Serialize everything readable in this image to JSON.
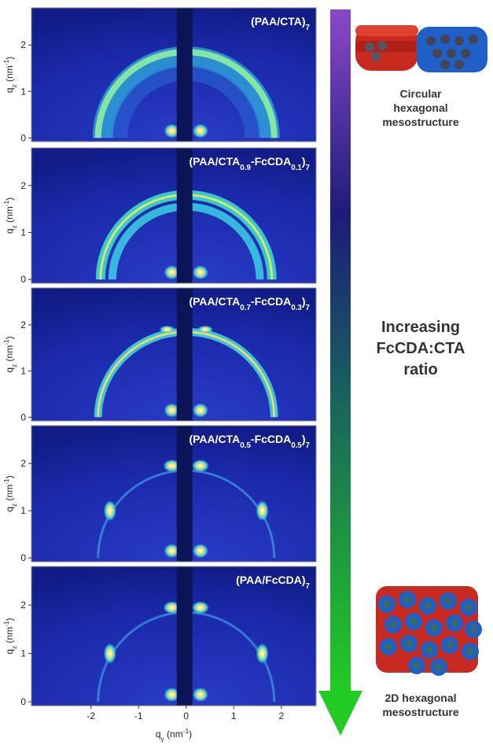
{
  "chart_data": [
    {
      "type": "scattering-image",
      "title": [
        {
          "text": "(PAA/CTA)"
        },
        {
          "text": "7",
          "sub": true
        }
      ],
      "ylabel": [
        {
          "text": "q"
        },
        {
          "text": "z",
          "sub": true
        },
        {
          "text": " (nm"
        },
        {
          "text": "-1",
          "sup": true
        },
        {
          "text": ")"
        }
      ],
      "xlim": [
        -3.25,
        2.73
      ],
      "ylim": [
        -0.08,
        2.8
      ],
      "yticks": [
        0,
        1,
        2
      ],
      "pattern": "ring"
    },
    {
      "type": "scattering-image",
      "title": [
        {
          "text": "(PAA/CTA"
        },
        {
          "text": "0.9",
          "sub": true
        },
        {
          "text": "-FcCDA"
        },
        {
          "text": "0.1",
          "sub": true
        },
        {
          "text": ")"
        },
        {
          "text": "7",
          "sub": true
        }
      ],
      "ylabel": [
        {
          "text": "q"
        },
        {
          "text": "z",
          "sub": true
        },
        {
          "text": " (nm"
        },
        {
          "text": "-1",
          "sup": true
        },
        {
          "text": ")"
        }
      ],
      "xlim": [
        -3.25,
        2.73
      ],
      "ylim": [
        -0.08,
        2.8
      ],
      "yticks": [
        0,
        1,
        2
      ],
      "pattern": "double-ring"
    },
    {
      "type": "scattering-image",
      "title": [
        {
          "text": "(PAA/CTA"
        },
        {
          "text": "0.7",
          "sub": true
        },
        {
          "text": "-FcCDA"
        },
        {
          "text": "0.3",
          "sub": true
        },
        {
          "text": ")"
        },
        {
          "text": "7",
          "sub": true
        }
      ],
      "ylabel": [
        {
          "text": "q"
        },
        {
          "text": "z",
          "sub": true
        },
        {
          "text": " (nm"
        },
        {
          "text": "-1",
          "sup": true
        },
        {
          "text": ")"
        }
      ],
      "xlim": [
        -3.25,
        2.73
      ],
      "ylim": [
        -0.08,
        2.8
      ],
      "yticks": [
        0,
        1,
        2
      ],
      "pattern": "thin-ring"
    },
    {
      "type": "scattering-image",
      "title": [
        {
          "text": "(PAA/CTA"
        },
        {
          "text": "0.5",
          "sub": true
        },
        {
          "text": "-FcCDA"
        },
        {
          "text": "0.5",
          "sub": true
        },
        {
          "text": ")"
        },
        {
          "text": "7",
          "sub": true
        }
      ],
      "ylabel": [
        {
          "text": "q"
        },
        {
          "text": "z",
          "sub": true
        },
        {
          "text": " (nm"
        },
        {
          "text": "-1",
          "sup": true
        },
        {
          "text": ")"
        }
      ],
      "xlim": [
        -3.25,
        2.73
      ],
      "ylim": [
        -0.08,
        2.8
      ],
      "yticks": [
        0,
        1,
        2
      ],
      "pattern": "spots"
    },
    {
      "type": "scattering-image",
      "title": [
        {
          "text": "(PAA/FcCDA)"
        },
        {
          "text": "7",
          "sub": true
        }
      ],
      "ylabel": [
        {
          "text": "q"
        },
        {
          "text": "z",
          "sub": true
        },
        {
          "text": " (nm"
        },
        {
          "text": "-1",
          "sup": true
        },
        {
          "text": ")"
        }
      ],
      "xlim": [
        -3.25,
        2.73
      ],
      "ylim": [
        -0.08,
        2.8
      ],
      "yticks": [
        0,
        1,
        2
      ],
      "pattern": "spots",
      "xticks": [
        -2,
        -1,
        0,
        1,
        2
      ],
      "xlabel": [
        {
          "text": "q"
        },
        {
          "text": "y",
          "sub": true
        },
        {
          "text": " (nm"
        },
        {
          "text": "-1",
          "sup": true
        },
        {
          "text": ")"
        }
      ]
    }
  ],
  "annotations": {
    "top_label": [
      "Circular",
      "hexagonal",
      "mesostructure"
    ],
    "middle_label": [
      "Increasing",
      "FcCDA:CTA",
      "ratio"
    ],
    "bottom_label": [
      "2D hexagonal",
      "mesostructure"
    ]
  }
}
